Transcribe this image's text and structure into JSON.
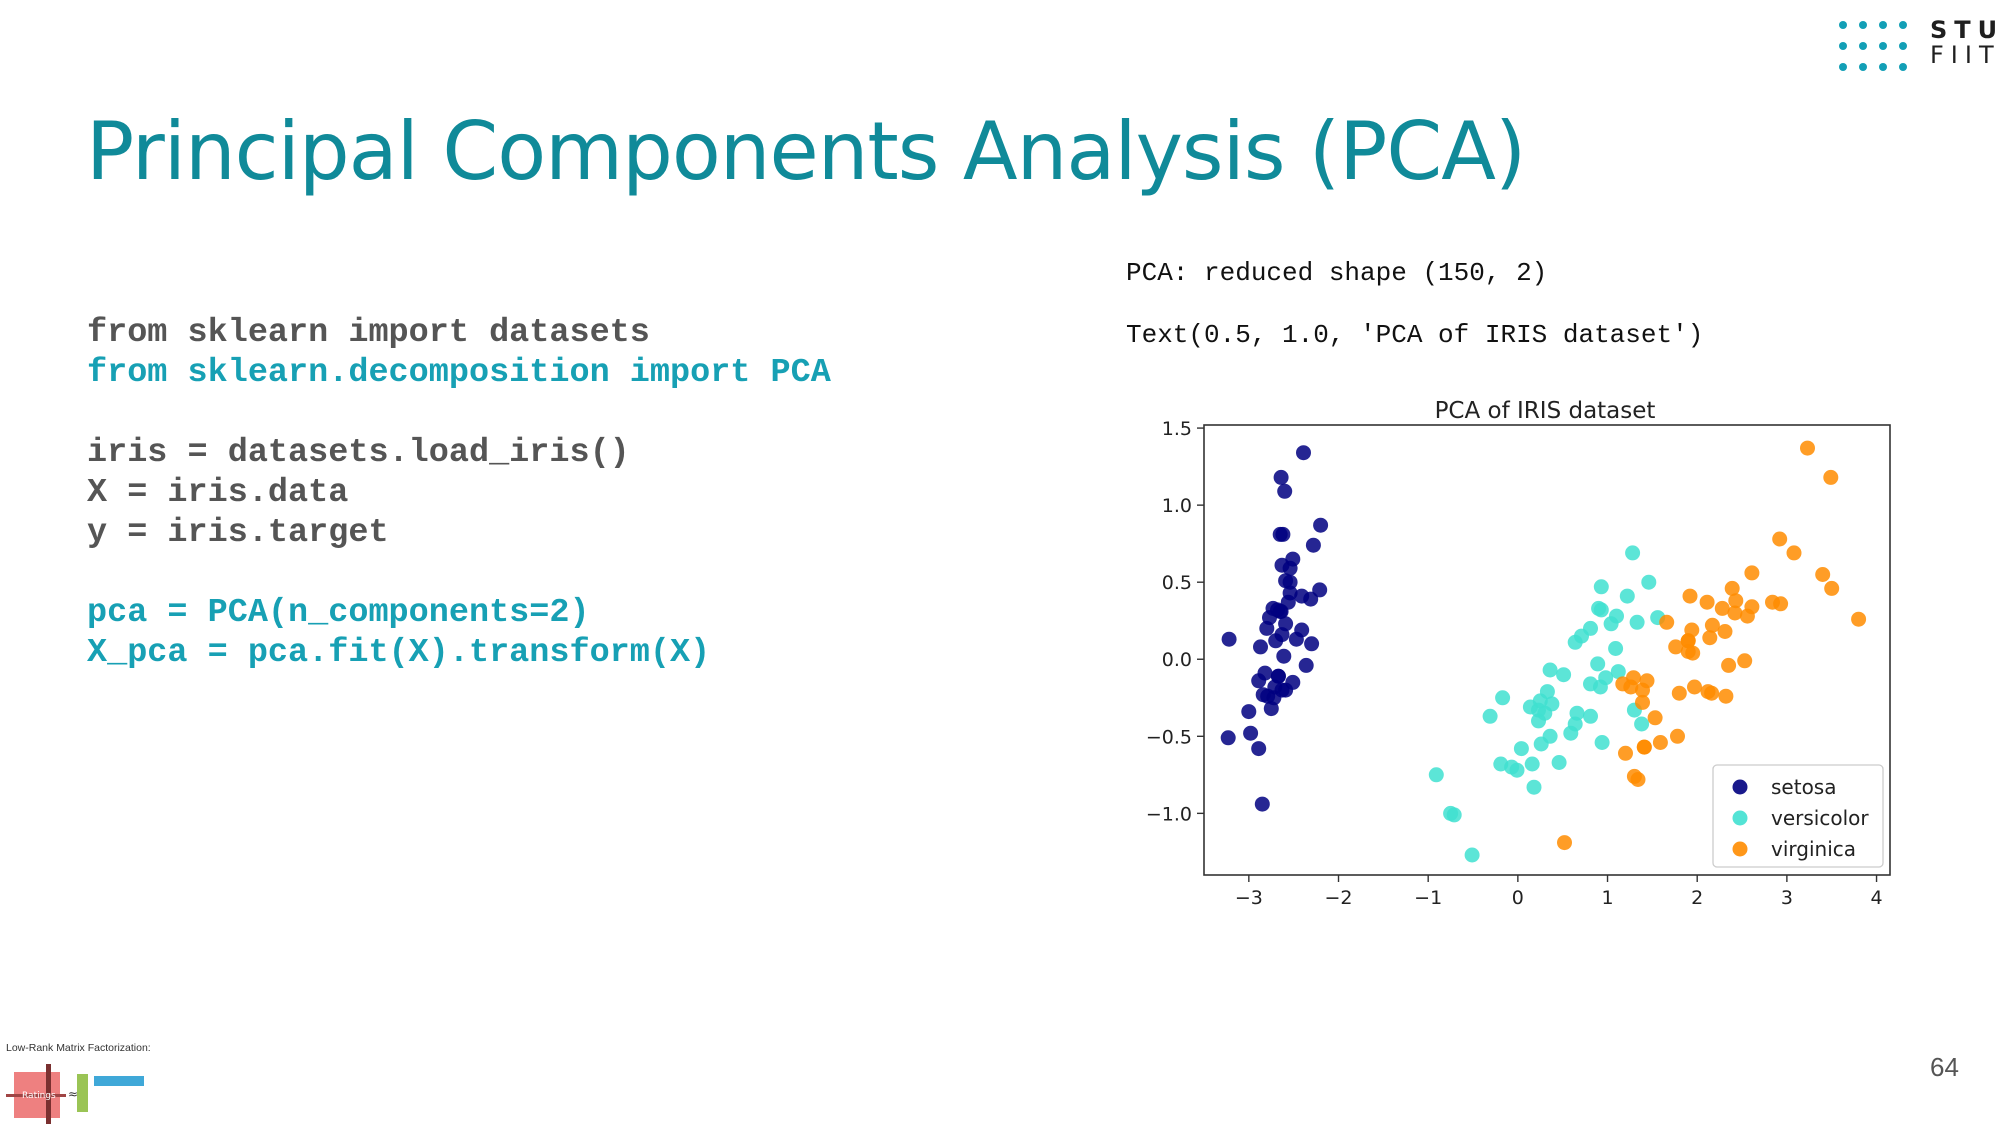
{
  "logo": {
    "line1": "STU",
    "line2": "FIIT"
  },
  "title": "Principal Components Analysis (PCA)",
  "code": [
    {
      "text": "from sklearn import datasets",
      "tone": "gray"
    },
    {
      "text": "from sklearn.decomposition import PCA",
      "tone": "teal"
    },
    {
      "text": "",
      "tone": "gray"
    },
    {
      "text": "iris = datasets.load_iris()",
      "tone": "gray"
    },
    {
      "text": "X = iris.data",
      "tone": "gray"
    },
    {
      "text": "y = iris.target",
      "tone": "gray"
    },
    {
      "text": "",
      "tone": "gray"
    },
    {
      "text": "pca = PCA(n_components=2)",
      "tone": "teal"
    },
    {
      "text": "X_pca = pca.fit(X).transform(X)",
      "tone": "teal"
    }
  ],
  "output": {
    "line1": "PCA: reduced shape (150, 2)",
    "line2": "Text(0.5, 1.0, 'PCA of IRIS dataset')"
  },
  "chart_data": {
    "type": "scatter",
    "title": "PCA of IRIS dataset",
    "xlabel": "",
    "ylabel": "",
    "xlim": [
      -3.5,
      4.15
    ],
    "ylim": [
      -1.4,
      1.52
    ],
    "xticks": [
      -3,
      -2,
      -1,
      0,
      1,
      2,
      3,
      4
    ],
    "yticks": [
      -1.0,
      -0.5,
      0.0,
      0.5,
      1.0,
      1.5
    ],
    "ytick_labels": [
      "−1.0",
      "−0.5",
      "0.0",
      "0.5",
      "1.0",
      "1.5"
    ],
    "xtick_labels": [
      "−3",
      "−2",
      "−1",
      "0",
      "1",
      "2",
      "3",
      "4"
    ],
    "legend_position": "lower right",
    "series": [
      {
        "name": "setosa",
        "color": "#000080",
        "points": [
          [
            -2.68,
            0.32
          ],
          [
            -2.71,
            -0.18
          ],
          [
            -2.89,
            -0.14
          ],
          [
            -2.75,
            -0.32
          ],
          [
            -2.73,
            0.33
          ],
          [
            -2.28,
            0.74
          ],
          [
            -2.82,
            -0.09
          ],
          [
            -2.63,
            0.16
          ],
          [
            -2.89,
            -0.58
          ],
          [
            -2.67,
            -0.11
          ],
          [
            -2.51,
            0.65
          ],
          [
            -2.61,
            0.02
          ],
          [
            -2.79,
            -0.24
          ],
          [
            -3.23,
            -0.51
          ],
          [
            -2.64,
            1.18
          ],
          [
            -2.39,
            1.34
          ],
          [
            -2.62,
            0.81
          ],
          [
            -2.65,
            0.31
          ],
          [
            -2.2,
            0.87
          ],
          [
            -2.59,
            0.51
          ],
          [
            -2.31,
            0.39
          ],
          [
            -2.54,
            0.43
          ],
          [
            -3.22,
            0.13
          ],
          [
            -2.3,
            0.1
          ],
          [
            -2.36,
            -0.04
          ],
          [
            -2.51,
            -0.15
          ],
          [
            -2.47,
            0.13
          ],
          [
            -2.56,
            0.37
          ],
          [
            -2.64,
            0.31
          ],
          [
            -2.63,
            -0.2
          ],
          [
            -2.59,
            -0.2
          ],
          [
            -2.41,
            0.41
          ],
          [
            -2.65,
            0.81
          ],
          [
            -2.6,
            1.09
          ],
          [
            -2.67,
            -0.11
          ],
          [
            -2.87,
            0.08
          ],
          [
            -2.63,
            0.61
          ],
          [
            -2.8,
            0.2
          ],
          [
            -2.98,
            -0.48
          ],
          [
            -2.59,
            0.23
          ],
          [
            -2.77,
            0.27
          ],
          [
            -2.85,
            -0.94
          ],
          [
            -3.0,
            -0.34
          ],
          [
            -2.41,
            0.19
          ],
          [
            -2.21,
            0.45
          ],
          [
            -2.72,
            -0.25
          ],
          [
            -2.54,
            0.5
          ],
          [
            -2.84,
            -0.23
          ],
          [
            -2.54,
            0.59
          ],
          [
            -2.7,
            0.12
          ]
        ]
      },
      {
        "name": "versicolor",
        "color": "#40e0d0",
        "points": [
          [
            1.28,
            0.69
          ],
          [
            0.93,
            0.32
          ],
          [
            1.46,
            0.5
          ],
          [
            0.18,
            -0.83
          ],
          [
            1.09,
            0.07
          ],
          [
            0.64,
            -0.42
          ],
          [
            1.1,
            0.28
          ],
          [
            -0.75,
            -1.0
          ],
          [
            1.04,
            0.23
          ],
          [
            -0.01,
            -0.72
          ],
          [
            -0.51,
            -1.27
          ],
          [
            0.51,
            -0.1
          ],
          [
            0.26,
            -0.55
          ],
          [
            0.98,
            -0.12
          ],
          [
            -0.17,
            -0.25
          ],
          [
            0.93,
            0.47
          ],
          [
            0.66,
            -0.35
          ],
          [
            0.23,
            -0.33
          ],
          [
            0.94,
            -0.54
          ],
          [
            0.04,
            -0.58
          ],
          [
            1.12,
            -0.08
          ],
          [
            0.36,
            -0.07
          ],
          [
            1.3,
            -0.33
          ],
          [
            0.92,
            -0.18
          ],
          [
            0.71,
            0.15
          ],
          [
            0.9,
            0.33
          ],
          [
            1.33,
            0.24
          ],
          [
            1.56,
            0.27
          ],
          [
            0.81,
            -0.16
          ],
          [
            -0.31,
            -0.37
          ],
          [
            -0.07,
            -0.7
          ],
          [
            -0.19,
            -0.68
          ],
          [
            0.14,
            -0.31
          ],
          [
            1.38,
            -0.42
          ],
          [
            0.59,
            -0.48
          ],
          [
            0.81,
            0.2
          ],
          [
            1.22,
            0.41
          ],
          [
            0.81,
            -0.37
          ],
          [
            0.25,
            -0.27
          ],
          [
            0.16,
            -0.68
          ],
          [
            0.46,
            -0.67
          ],
          [
            0.89,
            -0.03
          ],
          [
            0.23,
            -0.4
          ],
          [
            -0.71,
            -1.01
          ],
          [
            0.36,
            -0.5
          ],
          [
            0.33,
            -0.21
          ],
          [
            0.38,
            -0.29
          ],
          [
            0.64,
            0.11
          ],
          [
            -0.91,
            -0.75
          ],
          [
            0.3,
            -0.35
          ]
        ]
      },
      {
        "name": "virginica",
        "color": "#ff8c00",
        "points": [
          [
            2.53,
            -0.01
          ],
          [
            1.41,
            -0.57
          ],
          [
            2.61,
            0.34
          ],
          [
            1.97,
            -0.18
          ],
          [
            2.35,
            -0.04
          ],
          [
            3.4,
            0.55
          ],
          [
            0.52,
            -1.19
          ],
          [
            2.93,
            0.36
          ],
          [
            2.32,
            -0.24
          ],
          [
            2.92,
            0.78
          ],
          [
            1.66,
            0.24
          ],
          [
            1.8,
            -0.22
          ],
          [
            2.17,
            0.22
          ],
          [
            1.34,
            -0.78
          ],
          [
            1.59,
            -0.54
          ],
          [
            1.9,
            0.12
          ],
          [
            1.95,
            0.04
          ],
          [
            3.49,
            1.18
          ],
          [
            3.8,
            0.26
          ],
          [
            1.3,
            -0.76
          ],
          [
            2.43,
            0.38
          ],
          [
            1.2,
            -0.61
          ],
          [
            3.5,
            0.46
          ],
          [
            1.39,
            -0.2
          ],
          [
            2.28,
            0.33
          ],
          [
            2.61,
            0.56
          ],
          [
            1.26,
            -0.18
          ],
          [
            1.29,
            -0.12
          ],
          [
            2.12,
            -0.21
          ],
          [
            2.39,
            0.46
          ],
          [
            2.84,
            0.37
          ],
          [
            3.23,
            1.37
          ],
          [
            2.16,
            -0.22
          ],
          [
            1.44,
            -0.14
          ],
          [
            1.78,
            -0.5
          ],
          [
            3.08,
            0.69
          ],
          [
            2.14,
            0.14
          ],
          [
            1.9,
            0.05
          ],
          [
            1.17,
            -0.16
          ],
          [
            2.11,
            0.37
          ],
          [
            2.31,
            0.18
          ],
          [
            1.92,
            0.41
          ],
          [
            1.41,
            -0.57
          ],
          [
            2.56,
            0.28
          ],
          [
            2.42,
            0.3
          ],
          [
            1.94,
            0.19
          ],
          [
            1.53,
            -0.38
          ],
          [
            1.76,
            0.08
          ],
          [
            1.9,
            0.12
          ],
          [
            1.39,
            -0.28
          ]
        ]
      }
    ]
  },
  "footer": {
    "label": "Low-Rank Matrix Factorization:"
  },
  "page_number": "64"
}
